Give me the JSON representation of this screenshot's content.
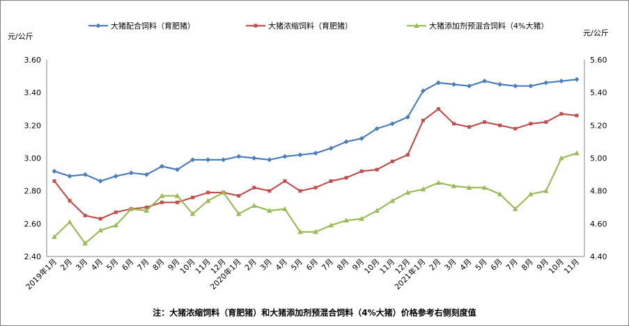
{
  "chart_data": {
    "type": "line",
    "left_unit": "元/公斤",
    "right_unit": "元/公斤",
    "ylim_left": [
      2.4,
      3.6
    ],
    "ylim_right": [
      4.4,
      5.6
    ],
    "yticks_left": [
      "2.40",
      "2.60",
      "2.80",
      "3.00",
      "3.20",
      "3.40",
      "3.60"
    ],
    "yticks_right": [
      "4.40",
      "4.60",
      "4.80",
      "5.00",
      "5.20",
      "5.40",
      "5.60"
    ],
    "categories": [
      "2019年1月",
      "2月",
      "3月",
      "4月",
      "5月",
      "6月",
      "7月",
      "8月",
      "9月",
      "10月",
      "11月",
      "12月",
      "2020年1月",
      "2月",
      "3月",
      "4月",
      "5月",
      "6月",
      "7月",
      "8月",
      "9月",
      "10月",
      "11月",
      "12月",
      "2021年1月",
      "2月",
      "3月",
      "4月",
      "5月",
      "6月",
      "7月",
      "8月",
      "9月",
      "10月",
      "11月"
    ],
    "series": [
      {
        "name": "大猪配合饲料（育肥猪）",
        "axis": "left",
        "color": "#4a7ebb",
        "marker": "diamond",
        "values": [
          2.92,
          2.89,
          2.9,
          2.86,
          2.89,
          2.91,
          2.9,
          2.95,
          2.93,
          2.99,
          2.99,
          2.99,
          3.01,
          3.0,
          2.99,
          3.01,
          3.02,
          3.03,
          3.06,
          3.1,
          3.12,
          3.18,
          3.21,
          3.25,
          3.41,
          3.46,
          3.45,
          3.44,
          3.47,
          3.45,
          3.44,
          3.44,
          3.46,
          3.47,
          3.48
        ]
      },
      {
        "name": "大猪浓缩饲料（育肥猪）",
        "axis": "right",
        "color": "#c0504d",
        "marker": "square",
        "values": [
          4.86,
          4.74,
          4.65,
          4.63,
          4.67,
          4.69,
          4.7,
          4.73,
          4.73,
          4.76,
          4.79,
          4.79,
          4.77,
          4.82,
          4.8,
          4.86,
          4.8,
          4.82,
          4.86,
          4.88,
          4.92,
          4.93,
          4.98,
          5.02,
          5.23,
          5.3,
          5.21,
          5.19,
          5.22,
          5.2,
          5.18,
          5.21,
          5.22,
          5.27,
          5.26
        ]
      },
      {
        "name": "大猪添加剂预混合饲料（4%大猪）",
        "axis": "right",
        "color": "#9bbb59",
        "marker": "triangle",
        "values": [
          4.52,
          4.61,
          4.48,
          4.56,
          4.59,
          4.69,
          4.68,
          4.77,
          4.77,
          4.66,
          4.74,
          4.79,
          4.66,
          4.71,
          4.68,
          4.69,
          4.55,
          4.55,
          4.59,
          4.62,
          4.63,
          4.68,
          4.74,
          4.79,
          4.81,
          4.85,
          4.83,
          4.82,
          4.82,
          4.78,
          4.69,
          4.78,
          4.8,
          5.0,
          5.03
        ]
      }
    ],
    "note": "注：大猪浓缩饲料（育肥猪）和大猪添加剂预混合饲料（4%大猪）价格参考右侧刻度值"
  }
}
